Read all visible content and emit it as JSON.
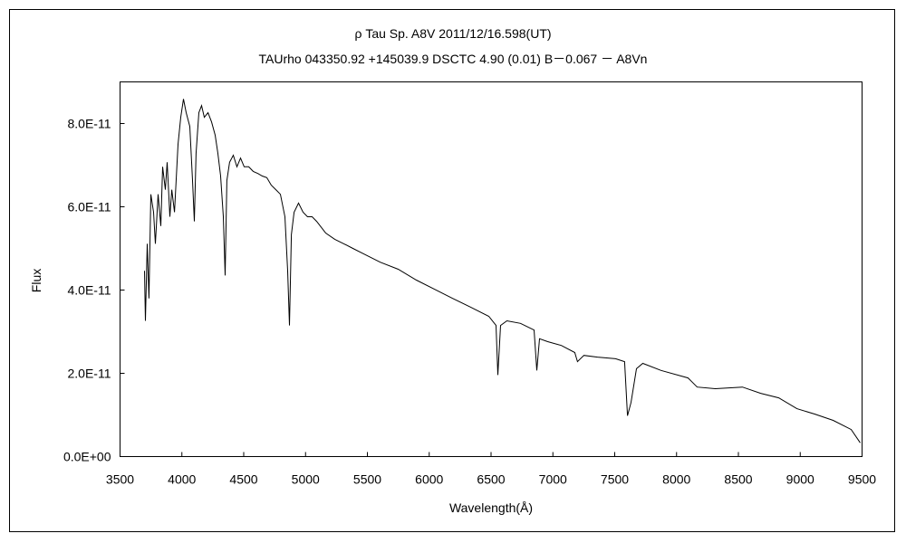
{
  "chart_data": {
    "type": "line",
    "title": "ρ  Tau    Sp. A8V    2011/12/16.598(UT)",
    "subtitle": "TAUrho 043350.92 +145039.9 DSCTC 4.90 (0.01) B－0.067 － A8Vn",
    "xlabel": "Wavelength(Å)",
    "ylabel": "Flux",
    "xlim": [
      3500,
      9500
    ],
    "ylim": [
      0,
      9e-11
    ],
    "xticks": [
      "3500",
      "4000",
      "4500",
      "5000",
      "5500",
      "6000",
      "6500",
      "7000",
      "7500",
      "8000",
      "8500",
      "9000",
      "9500"
    ],
    "xtick_values": [
      3500,
      4000,
      4500,
      5000,
      5500,
      6000,
      6500,
      7000,
      7500,
      8000,
      8500,
      9000,
      9500
    ],
    "yticks": [
      "0.0E+00",
      "2.0E-11",
      "4.0E-11",
      "6.0E-11",
      "8.0E-11"
    ],
    "ytick_values": [
      0,
      2e-11,
      4e-11,
      6e-11,
      8e-11
    ],
    "grid": false,
    "line_color": "#000000",
    "series": [
      {
        "x": [
          3698,
          3705,
          3720,
          3734,
          3749,
          3771,
          3786,
          3808,
          3830,
          3844,
          3866,
          3881,
          3903,
          3918,
          3940,
          3969,
          3991,
          4013,
          4035,
          4064,
          4086,
          4101,
          4115,
          4137,
          4159,
          4181,
          4211,
          4240,
          4269,
          4291,
          4313,
          4335,
          4350,
          4364,
          4386,
          4416,
          4445,
          4474,
          4504,
          4540,
          4577,
          4614,
          4650,
          4687,
          4723,
          4760,
          4797,
          4833,
          4855,
          4870,
          4885,
          4907,
          4943,
          4980,
          5016,
          5053,
          5090,
          5163,
          5236,
          5310,
          5383,
          5456,
          5603,
          5749,
          5896,
          6042,
          6189,
          6335,
          6482,
          6540,
          6555,
          6577,
          6628,
          6738,
          6848,
          6870,
          6892,
          6958,
          7068,
          7177,
          7199,
          7251,
          7361,
          7507,
          7580,
          7603,
          7632,
          7676,
          7727,
          7874,
          8093,
          8167,
          8313,
          8533,
          8680,
          8826,
          8973,
          9119,
          9266,
          9412,
          9485
        ],
        "y": [
          4.46e-11,
          3.26e-11,
          5.11e-11,
          3.8e-11,
          6.3e-11,
          5.87e-11,
          5.11e-11,
          6.3e-11,
          5.54e-11,
          6.96e-11,
          6.41e-11,
          7.07e-11,
          5.76e-11,
          6.41e-11,
          5.87e-11,
          7.5e-11,
          8.15e-11,
          8.59e-11,
          8.26e-11,
          7.93e-11,
          6.63e-11,
          5.65e-11,
          7.28e-11,
          8.26e-11,
          8.43e-11,
          8.15e-11,
          8.26e-11,
          8.04e-11,
          7.72e-11,
          7.28e-11,
          6.74e-11,
          5.76e-11,
          4.35e-11,
          6.63e-11,
          7.07e-11,
          7.24e-11,
          6.96e-11,
          7.17e-11,
          6.96e-11,
          6.96e-11,
          6.85e-11,
          6.8e-11,
          6.74e-11,
          6.7e-11,
          6.52e-11,
          6.41e-11,
          6.3e-11,
          5.76e-11,
          4.46e-11,
          3.15e-11,
          5.33e-11,
          5.87e-11,
          6.09e-11,
          5.87e-11,
          5.76e-11,
          5.76e-11,
          5.65e-11,
          5.37e-11,
          5.22e-11,
          5.11e-11,
          5e-11,
          4.89e-11,
          4.67e-11,
          4.5e-11,
          4.24e-11,
          4.02e-11,
          3.8e-11,
          3.59e-11,
          3.37e-11,
          3.15e-11,
          1.96e-11,
          3.15e-11,
          3.26e-11,
          3.2e-11,
          3.04e-11,
          2.07e-11,
          2.83e-11,
          2.76e-11,
          2.67e-11,
          2.5e-11,
          2.28e-11,
          2.43e-11,
          2.39e-11,
          2.35e-11,
          2.28e-11,
          9.8e-12,
          1.3e-11,
          2.11e-11,
          2.24e-11,
          2.07e-11,
          1.89e-11,
          1.67e-11,
          1.63e-11,
          1.67e-11,
          1.52e-11,
          1.41e-11,
          1.15e-11,
          1.02e-11,
          8.7e-12,
          6.5e-12,
          3.3e-12
        ]
      }
    ]
  }
}
